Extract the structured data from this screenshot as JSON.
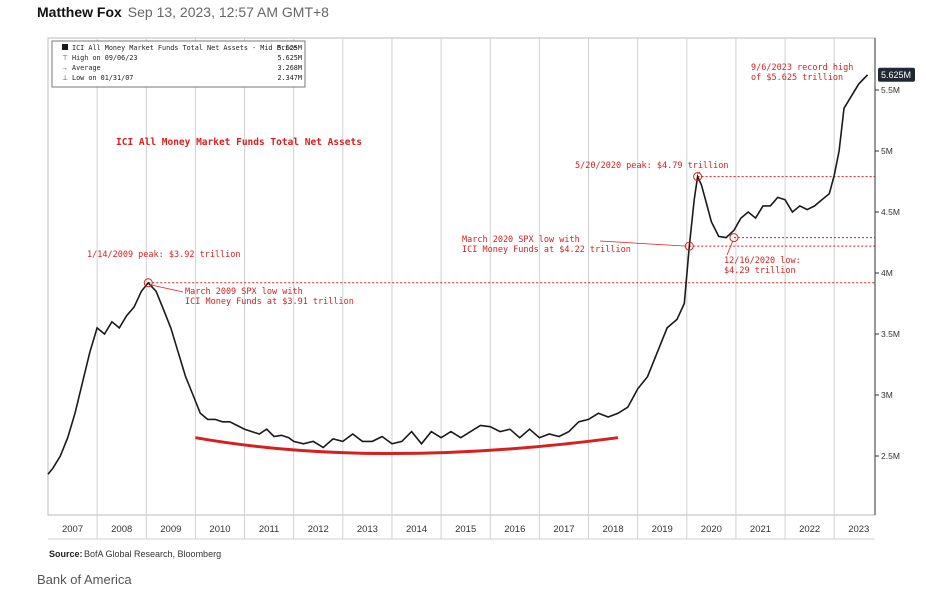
{
  "byline": {
    "author": "Matthew Fox",
    "date": "Sep 13, 2023, 12:57 AM GMT+8"
  },
  "credit": "Bank of America",
  "chart_data": {
    "type": "line",
    "title": "ICI All Money Market Funds Total Net Assets",
    "source_label": "Source:",
    "source_text": "BofA Global Research, Bloomberg",
    "last_value_label": "5.625M",
    "legend": {
      "rows": [
        {
          "label": "ICI All Money Market Funds Total Net Assets - Mid Price",
          "value": "5.625M"
        },
        {
          "label": "High on 09/06/23",
          "value": "5.625M"
        },
        {
          "label": "Average",
          "value": "3.268M"
        },
        {
          "label": "Low on 01/31/07",
          "value": "2.347M"
        }
      ]
    },
    "y_ticks": [
      {
        "value": 2.5,
        "label": "2.5M"
      },
      {
        "value": 3.0,
        "label": "3M"
      },
      {
        "value": 3.5,
        "label": "3.5M"
      },
      {
        "value": 4.0,
        "label": "4M"
      },
      {
        "value": 4.5,
        "label": "4.5M"
      },
      {
        "value": 5.0,
        "label": "5M"
      },
      {
        "value": 5.5,
        "label": "5.5M"
      }
    ],
    "ylim": [
      2.0,
      5.95
    ],
    "xlim": [
      2007.0,
      2023.83
    ],
    "x_ticks": [
      "2007",
      "2008",
      "2009",
      "2010",
      "2011",
      "2012",
      "2013",
      "2014",
      "2015",
      "2016",
      "2017",
      "2018",
      "2019",
      "2020",
      "2021",
      "2022",
      "2023"
    ],
    "series": [
      {
        "x": [
          2007.0,
          2007.1,
          2007.25,
          2007.4,
          2007.55,
          2007.7,
          2007.85,
          2008.0,
          2008.15,
          2008.3,
          2008.45,
          2008.6,
          2008.75,
          2008.9,
          2009.04,
          2009.2,
          2009.35,
          2009.5,
          2009.65,
          2009.8,
          2009.95,
          2010.1,
          2010.25,
          2010.4,
          2010.55,
          2010.7,
          2010.85,
          2011.0,
          2011.15,
          2011.3,
          2011.45,
          2011.6,
          2011.75,
          2011.9,
          2012.0,
          2012.2,
          2012.4,
          2012.6,
          2012.8,
          2013.0,
          2013.2,
          2013.4,
          2013.6,
          2013.8,
          2014.0,
          2014.2,
          2014.4,
          2014.6,
          2014.8,
          2015.0,
          2015.2,
          2015.4,
          2015.6,
          2015.8,
          2016.0,
          2016.2,
          2016.4,
          2016.6,
          2016.8,
          2017.0,
          2017.2,
          2017.4,
          2017.6,
          2017.8,
          2018.0,
          2018.2,
          2018.4,
          2018.6,
          2018.8,
          2019.0,
          2019.2,
          2019.4,
          2019.6,
          2019.8,
          2019.95,
          2020.05,
          2020.15,
          2020.22,
          2020.3,
          2020.38,
          2020.5,
          2020.65,
          2020.8,
          2020.96,
          2021.1,
          2021.25,
          2021.4,
          2021.55,
          2021.7,
          2021.85,
          2022.0,
          2022.15,
          2022.3,
          2022.45,
          2022.6,
          2022.75,
          2022.9,
          2023.0,
          2023.1,
          2023.2,
          2023.35,
          2023.5,
          2023.68
        ],
        "values": [
          2.35,
          2.4,
          2.5,
          2.65,
          2.85,
          3.1,
          3.35,
          3.55,
          3.5,
          3.6,
          3.55,
          3.65,
          3.72,
          3.85,
          3.92,
          3.85,
          3.7,
          3.55,
          3.35,
          3.15,
          3.0,
          2.85,
          2.8,
          2.8,
          2.78,
          2.78,
          2.75,
          2.72,
          2.7,
          2.68,
          2.72,
          2.66,
          2.67,
          2.65,
          2.62,
          2.6,
          2.62,
          2.57,
          2.64,
          2.62,
          2.68,
          2.62,
          2.62,
          2.66,
          2.6,
          2.62,
          2.7,
          2.6,
          2.7,
          2.65,
          2.7,
          2.65,
          2.7,
          2.75,
          2.74,
          2.7,
          2.72,
          2.65,
          2.72,
          2.65,
          2.68,
          2.66,
          2.7,
          2.78,
          2.8,
          2.85,
          2.82,
          2.85,
          2.9,
          3.05,
          3.15,
          3.35,
          3.55,
          3.62,
          3.75,
          4.22,
          4.6,
          4.79,
          4.72,
          4.6,
          4.42,
          4.3,
          4.29,
          4.35,
          4.45,
          4.5,
          4.45,
          4.55,
          4.55,
          4.62,
          4.6,
          4.5,
          4.55,
          4.52,
          4.55,
          4.6,
          4.65,
          4.8,
          5.0,
          5.35,
          5.45,
          5.55,
          5.625
        ]
      }
    ],
    "ref_lines": [
      {
        "y": 3.92,
        "x_start": 2009.04
      },
      {
        "y": 4.79,
        "x_start": 2020.22
      },
      {
        "y": 4.29,
        "x_start": 2020.96
      },
      {
        "y": 4.22,
        "x_start": 2020.05
      }
    ],
    "markers": [
      {
        "x": 2009.04,
        "y": 3.92
      },
      {
        "x": 2020.22,
        "y": 4.79
      },
      {
        "x": 2020.05,
        "y": 4.22
      },
      {
        "x": 2020.96,
        "y": 4.29
      }
    ],
    "trough_curve": {
      "x": [
        2010.0,
        2014.0,
        2018.6
      ],
      "y": [
        2.65,
        2.52,
        2.65
      ]
    },
    "annotations": [
      {
        "lines": [
          "1/14/2009 peak: $3.92 trillion"
        ]
      },
      {
        "lines": [
          "March 2009 SPX low with",
          "ICI Money Funds at $3.91 trillion"
        ]
      },
      {
        "lines": [
          "5/20/2020 peak: $4.79 trillion"
        ]
      },
      {
        "lines": [
          "March 2020 SPX low with",
          "ICI Money Funds at $4.22 trillion"
        ]
      },
      {
        "lines": [
          "12/16/2020 low:",
          "$4.29 trillion"
        ]
      },
      {
        "lines": [
          "9/6/2023 record high",
          "of $5.625 trillion"
        ]
      }
    ],
    "colors": {
      "line": "#1a1a1a",
      "accent": "#d62020",
      "grid": "#cccccc",
      "axis": "#333333",
      "badge": "#1f2833"
    }
  }
}
